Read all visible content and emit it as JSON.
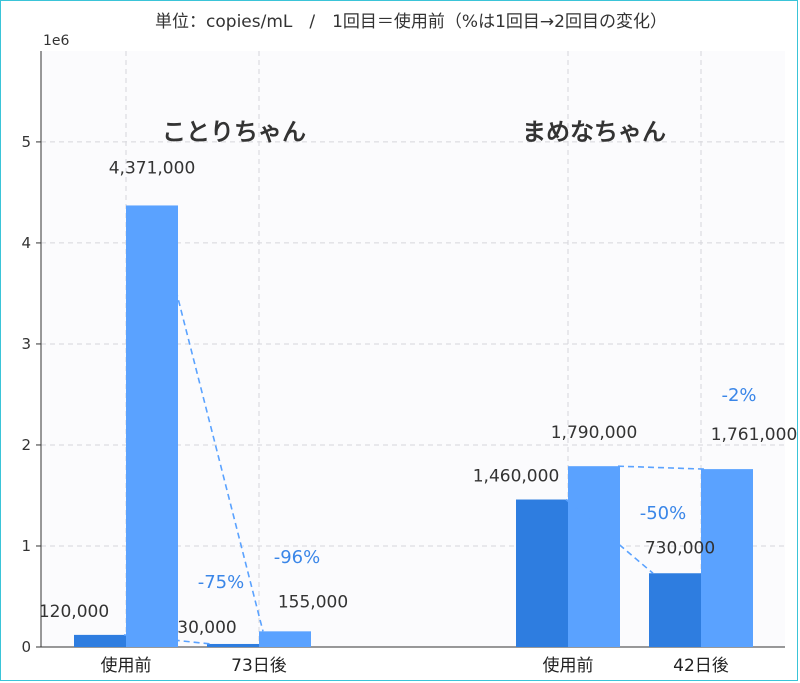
{
  "chart_data": {
    "type": "bar",
    "title": "単位：copies/mL　/　1回目＝使用前（%は1回目→2回目の変化）",
    "xlabel": "",
    "ylabel": "",
    "y_scale_label": "1e6",
    "y_ticks": [
      "0",
      "1",
      "2",
      "3",
      "4",
      "5"
    ],
    "ylim": [
      0,
      5900000
    ],
    "grid": true,
    "groups": [
      {
        "name": "ことりちゃん",
        "categories": [
          "使用前",
          "73日後"
        ],
        "series": [
          {
            "values": [
              120000,
              30000
            ],
            "labels": [
              "120,000",
              "30,000"
            ],
            "change": "-75%"
          },
          {
            "values": [
              4371000,
              155000
            ],
            "labels": [
              "4,371,000",
              "155,000"
            ],
            "change": "-96%"
          }
        ]
      },
      {
        "name": "まめなちゃん",
        "categories": [
          "使用前",
          "42日後"
        ],
        "series": [
          {
            "values": [
              1460000,
              730000
            ],
            "labels": [
              "1,460,000",
              "730,000"
            ],
            "change": "-50%"
          },
          {
            "values": [
              1790000,
              1761000
            ],
            "labels": [
              "1,790,000",
              "1,761,000"
            ],
            "change": "-2%"
          }
        ]
      }
    ],
    "colors": {
      "series_dark": "#2e7de0",
      "series_light": "#5aa2ff",
      "change_text": "#3a86e8"
    }
  }
}
